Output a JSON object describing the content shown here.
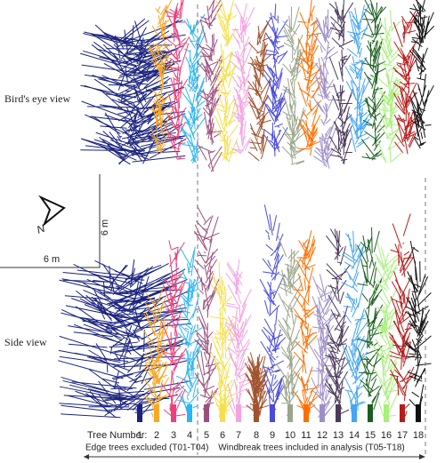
{
  "panels": {
    "top": "Bird's eye view",
    "bottom": "Side view"
  },
  "scale": {
    "vertical": "6 m",
    "horizontal": "6 m",
    "north": "N"
  },
  "tree_numbers": {
    "label": "Tree Number:",
    "numbers": [
      "1",
      "2",
      "3",
      "4",
      "5",
      "6",
      "7",
      "8",
      "9",
      "10",
      "11",
      "12",
      "13",
      "14",
      "15",
      "16",
      "17",
      "18"
    ]
  },
  "groups": {
    "edge": "Edge trees excluded (T01-T04)",
    "windbreak": "Windbreak trees included in analysis (T05-T18)"
  }
}
